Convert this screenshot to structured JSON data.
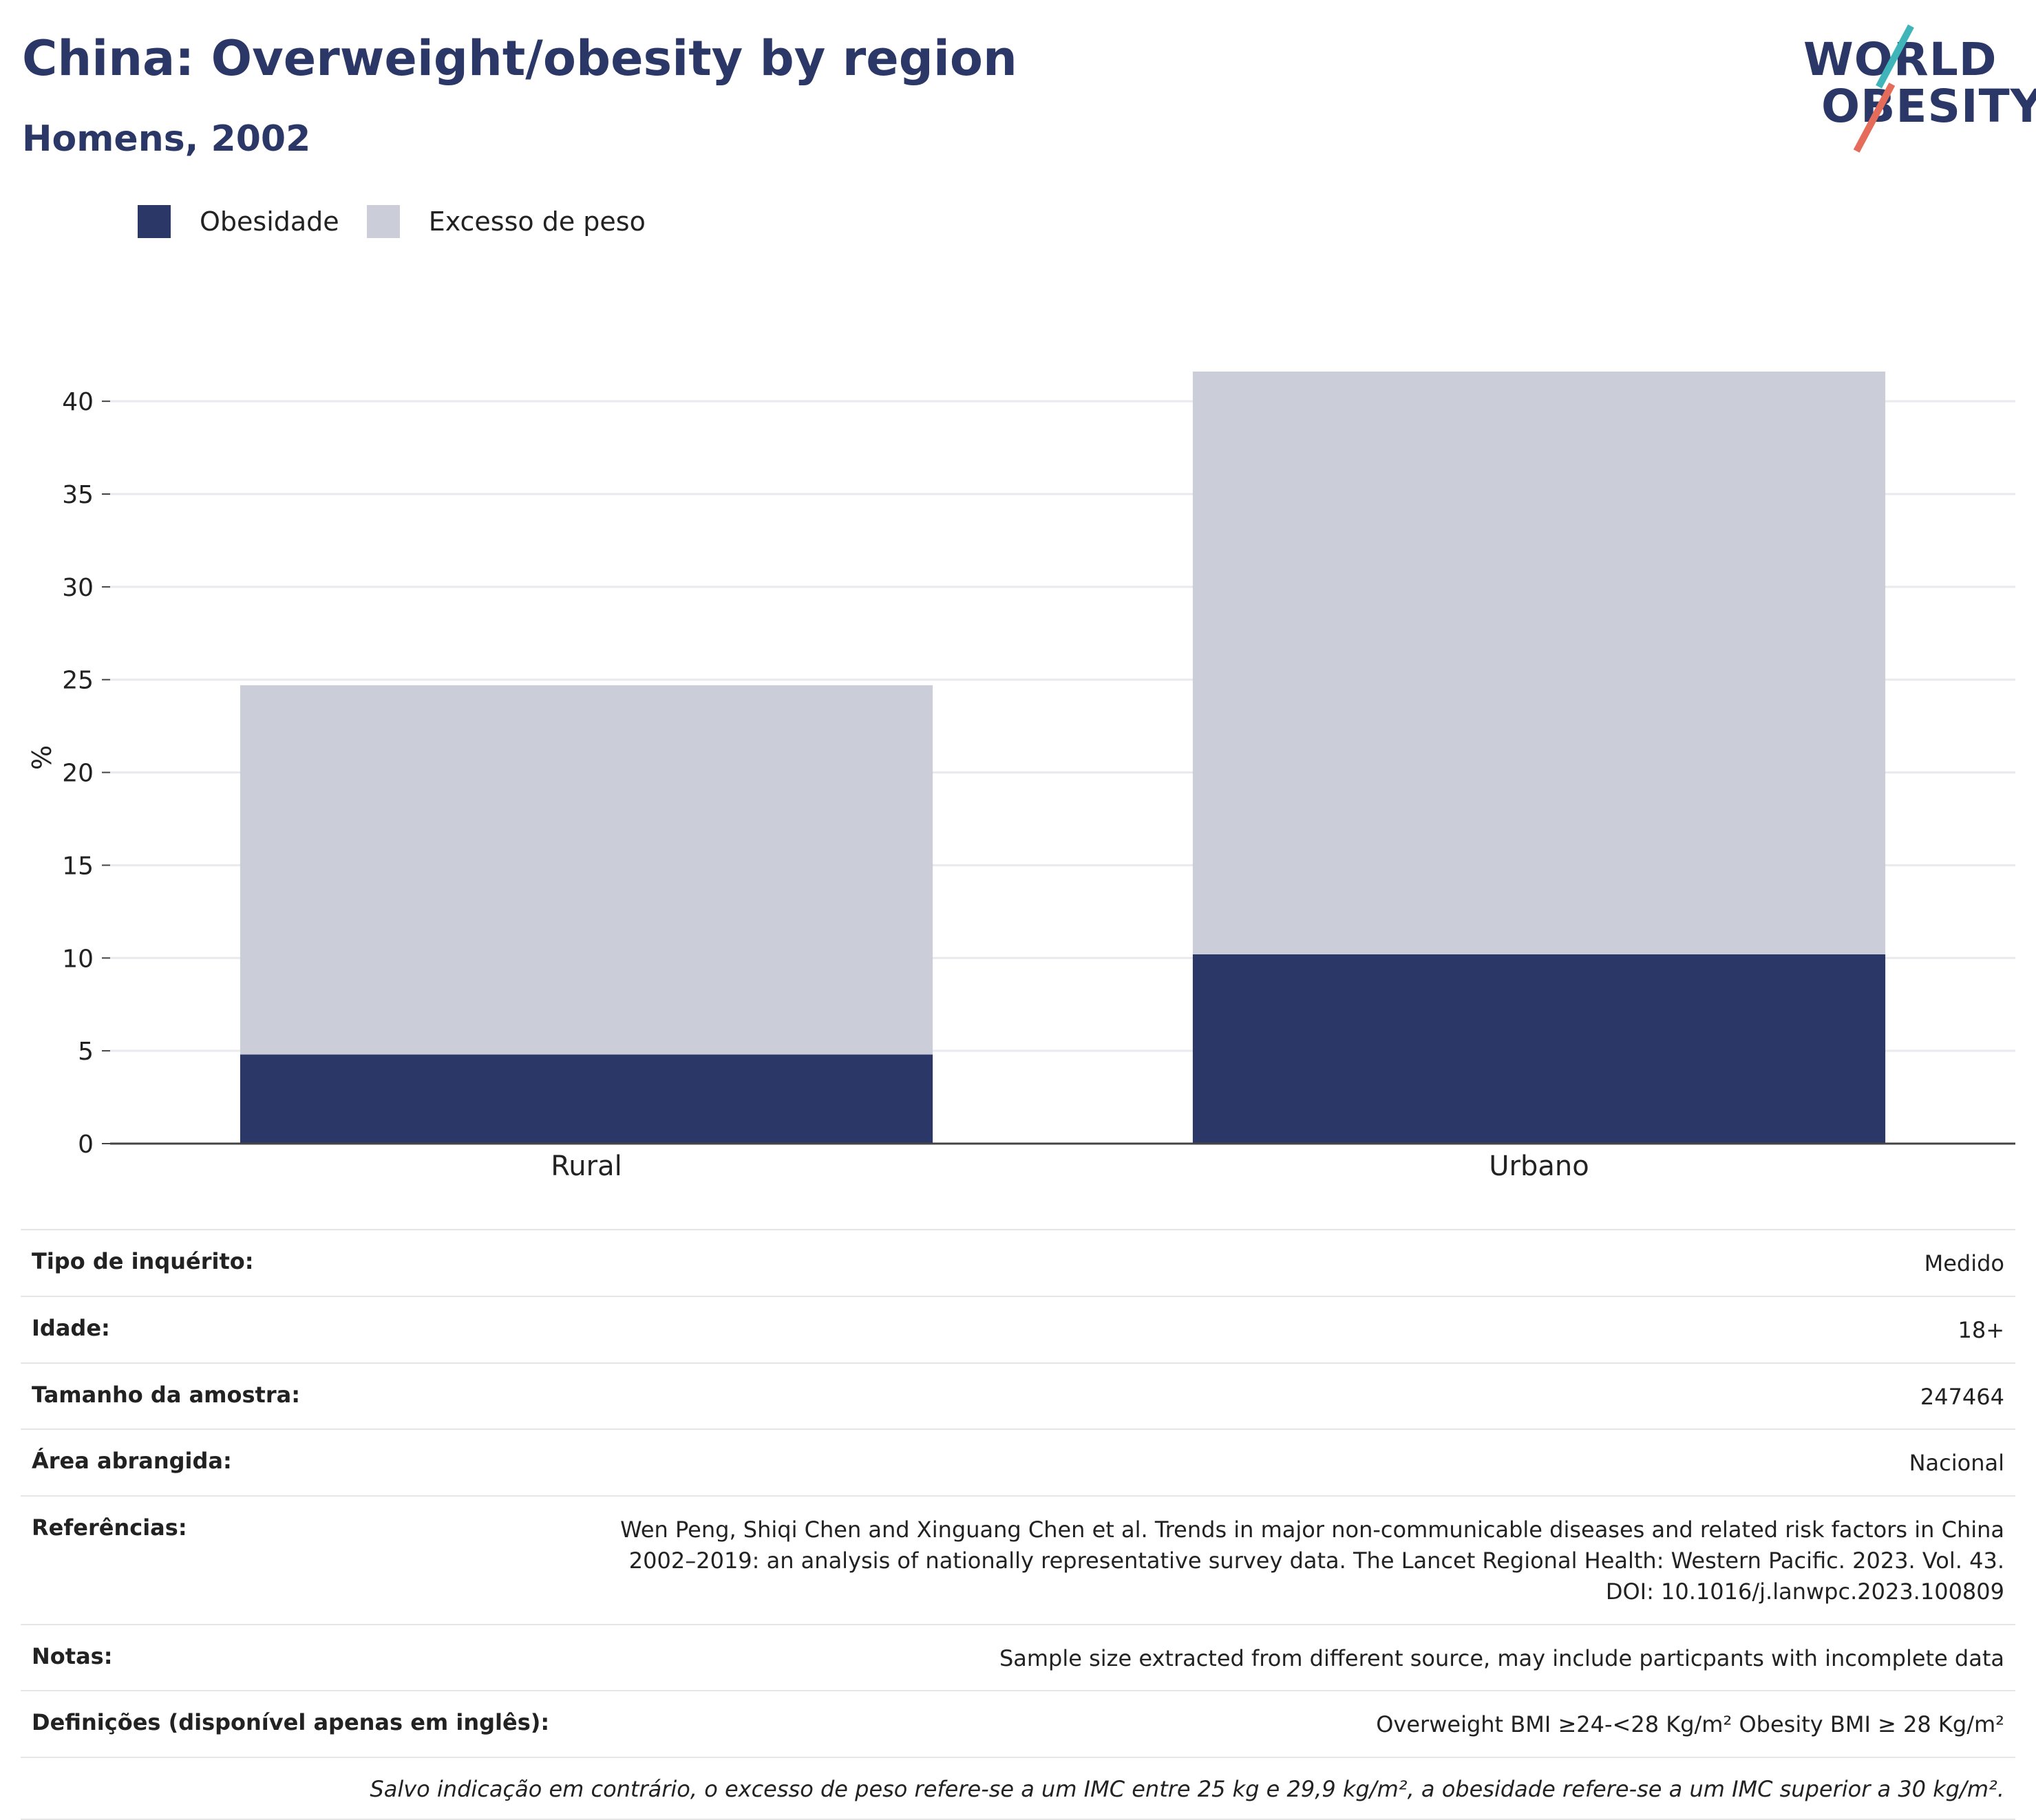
{
  "header": {
    "title": "China: Overweight/obesity by region",
    "subtitle": "Homens, 2002"
  },
  "logo": {
    "line1": "WORLD",
    "line2": "OBESITY"
  },
  "legend": {
    "items": [
      {
        "label": "Obesidade",
        "color": "#2b3766"
      },
      {
        "label": "Excesso de peso",
        "color": "#cbcdd8"
      }
    ]
  },
  "chart_data": {
    "type": "bar",
    "stacked": true,
    "categories": [
      "Rural",
      "Urbano"
    ],
    "series": [
      {
        "name": "Obesidade",
        "color": "#2b3766",
        "values": [
          4.8,
          10.2
        ]
      },
      {
        "name": "Excesso de peso",
        "color": "#cbcdd8",
        "values": [
          19.9,
          31.4
        ]
      }
    ],
    "xlabel": "",
    "ylabel": "%",
    "ylim": [
      0,
      41.6
    ],
    "yticks": [
      0,
      5,
      10,
      15,
      20,
      25,
      30,
      35,
      40
    ],
    "grid": true,
    "legend_position": "top-left"
  },
  "info": {
    "rows": [
      {
        "label": "Tipo de inquérito:",
        "value": "Medido"
      },
      {
        "label": "Idade:",
        "value": "18+"
      },
      {
        "label": "Tamanho da amostra:",
        "value": "247464"
      },
      {
        "label": "Área abrangida:",
        "value": "Nacional"
      },
      {
        "label": "Referências:",
        "value": "Wen Peng, Shiqi Chen and Xinguang Chen et al. Trends in major non-communicable diseases and related risk factors in China 2002–2019: an analysis of nationally representative survey data. The Lancet Regional Health: Western Pacific. 2023. Vol. 43. DOI: 10.1016/j.lanwpc.2023.100809"
      },
      {
        "label": "Notas:",
        "value": "Sample size extracted from different source, may include particpants with incomplete data"
      },
      {
        "label": "Definições (disponível apenas em inglês):",
        "value": "Overweight BMI ≥24-<28 Kg/m² Obesity BMI ≥ 28 Kg/m²"
      }
    ],
    "footnote": "Salvo indicação em contrário, o excesso de peso refere-se a um IMC entre 25 kg e 29,9 kg/m², a obesidade refere-se a um IMC superior a 30 kg/m²."
  }
}
